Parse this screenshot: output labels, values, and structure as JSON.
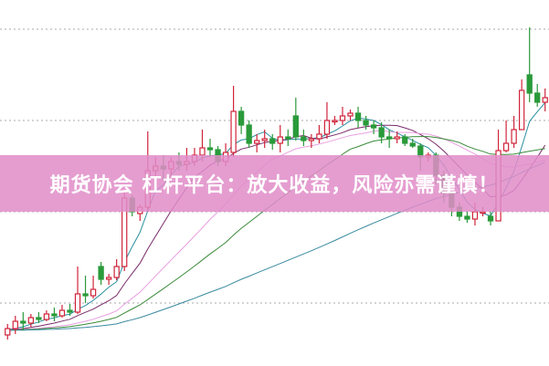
{
  "banner": {
    "text": "期货协会 杠杆平台：放大收益，风险亦需谨慎！",
    "color": "#e08cc8"
  },
  "chart_data": {
    "type": "candlestick",
    "title": "",
    "xlabel": "",
    "ylabel": "",
    "ylim": [
      0.3,
      4.3
    ],
    "gridlines": [
      1,
      2,
      3,
      4
    ],
    "grid": true,
    "colors": {
      "up": "#d0233a",
      "down": "#2a9a3a",
      "grid": "#aaaaaa"
    },
    "moving_averages": [
      {
        "period": 5,
        "color": "#2a8fa0"
      },
      {
        "period": 10,
        "color": "#7a2a6a"
      },
      {
        "period": 20,
        "color": "#e8a0e0"
      },
      {
        "period": 30,
        "color": "#3a8a3a"
      },
      {
        "period": 60,
        "color": "#3a8aa0"
      }
    ],
    "ohlc": [
      [
        0.65,
        0.72,
        0.77,
        0.6
      ],
      [
        0.72,
        0.8,
        0.86,
        0.66
      ],
      [
        0.8,
        0.78,
        0.9,
        0.7
      ],
      [
        0.78,
        0.84,
        0.88,
        0.74
      ],
      [
        0.84,
        0.82,
        0.9,
        0.78
      ],
      [
        0.82,
        0.88,
        0.92,
        0.8
      ],
      [
        0.88,
        0.86,
        0.95,
        0.8
      ],
      [
        0.86,
        0.92,
        0.98,
        0.84
      ],
      [
        0.92,
        0.9,
        0.99,
        0.86
      ],
      [
        0.9,
        1.1,
        1.4,
        0.88
      ],
      [
        1.1,
        1.08,
        1.3,
        1.0
      ],
      [
        1.08,
        1.15,
        1.3,
        1.05
      ],
      [
        1.4,
        1.26,
        1.45,
        1.2
      ],
      [
        1.26,
        1.28,
        1.32,
        1.2
      ],
      [
        1.28,
        1.4,
        1.48,
        1.25
      ],
      [
        1.4,
        2.15,
        2.22,
        1.35
      ],
      [
        2.15,
        2.0,
        2.18,
        1.95
      ],
      [
        1.98,
        2.05,
        2.08,
        1.9
      ],
      [
        2.05,
        2.45,
        2.88,
        2.0
      ],
      [
        2.45,
        2.5,
        2.6,
        2.38
      ],
      [
        2.5,
        2.47,
        2.62,
        2.35
      ],
      [
        2.47,
        2.55,
        2.6,
        2.4
      ],
      [
        2.55,
        2.52,
        2.65,
        2.45
      ],
      [
        2.52,
        2.55,
        2.7,
        2.45
      ],
      [
        2.55,
        2.62,
        2.7,
        2.5
      ],
      [
        2.62,
        2.7,
        2.9,
        2.55
      ],
      [
        2.7,
        2.68,
        2.8,
        2.6
      ],
      [
        2.68,
        2.55,
        2.72,
        2.5
      ],
      [
        2.55,
        2.65,
        2.75,
        2.5
      ],
      [
        2.65,
        3.1,
        3.38,
        2.6
      ],
      [
        3.1,
        2.95,
        3.15,
        2.85
      ],
      [
        2.95,
        2.75,
        3.0,
        2.7
      ],
      [
        2.75,
        2.78,
        2.85,
        2.65
      ],
      [
        2.78,
        2.8,
        2.9,
        2.7
      ],
      [
        2.8,
        2.75,
        2.85,
        2.68
      ],
      [
        2.75,
        2.82,
        2.95,
        2.65
      ],
      [
        2.82,
        2.8,
        2.9,
        2.72
      ],
      [
        3.05,
        2.82,
        3.25,
        2.78
      ],
      [
        2.82,
        2.78,
        2.9,
        2.72
      ],
      [
        2.78,
        2.8,
        2.85,
        2.7
      ],
      [
        2.8,
        2.85,
        2.95,
        2.75
      ],
      [
        2.85,
        3.0,
        3.2,
        2.8
      ],
      [
        3.0,
        3.0,
        3.05,
        2.95
      ],
      [
        3.0,
        3.05,
        3.15,
        2.95
      ],
      [
        3.05,
        3.08,
        3.12,
        3.0
      ],
      [
        3.08,
        3.0,
        3.15,
        2.92
      ],
      [
        3.0,
        2.95,
        3.05,
        2.9
      ],
      [
        2.95,
        2.92,
        3.0,
        2.85
      ],
      [
        2.92,
        2.82,
        2.98,
        2.75
      ],
      [
        2.82,
        2.8,
        2.9,
        2.7
      ],
      [
        2.8,
        2.82,
        2.88,
        2.75
      ],
      [
        2.82,
        2.75,
        2.85,
        2.72
      ],
      [
        2.75,
        2.72,
        2.8,
        2.7
      ],
      [
        2.72,
        2.6,
        2.75,
        2.45
      ],
      [
        2.6,
        2.62,
        2.65,
        2.55
      ],
      [
        2.62,
        2.4,
        2.65,
        2.3
      ],
      [
        2.4,
        2.2,
        2.45,
        2.1
      ],
      [
        2.2,
        2.05,
        2.25,
        1.95
      ],
      [
        2.05,
        1.95,
        2.1,
        1.9
      ],
      [
        1.95,
        1.92,
        2.0,
        1.88
      ],
      [
        1.92,
        2.0,
        2.1,
        1.85
      ],
      [
        2.0,
        2.0,
        2.05,
        1.95
      ],
      [
        1.95,
        1.9,
        2.0,
        1.85
      ],
      [
        1.9,
        2.67,
        2.9,
        1.9
      ],
      [
        2.67,
        2.75,
        3.0,
        2.65
      ],
      [
        2.75,
        2.9,
        3.05,
        2.7
      ],
      [
        2.9,
        3.33,
        3.45,
        2.9
      ],
      [
        3.5,
        3.3,
        4.02,
        3.2
      ],
      [
        3.3,
        3.2,
        3.4,
        3.15
      ],
      [
        3.2,
        3.25,
        3.35,
        3.1
      ]
    ]
  }
}
